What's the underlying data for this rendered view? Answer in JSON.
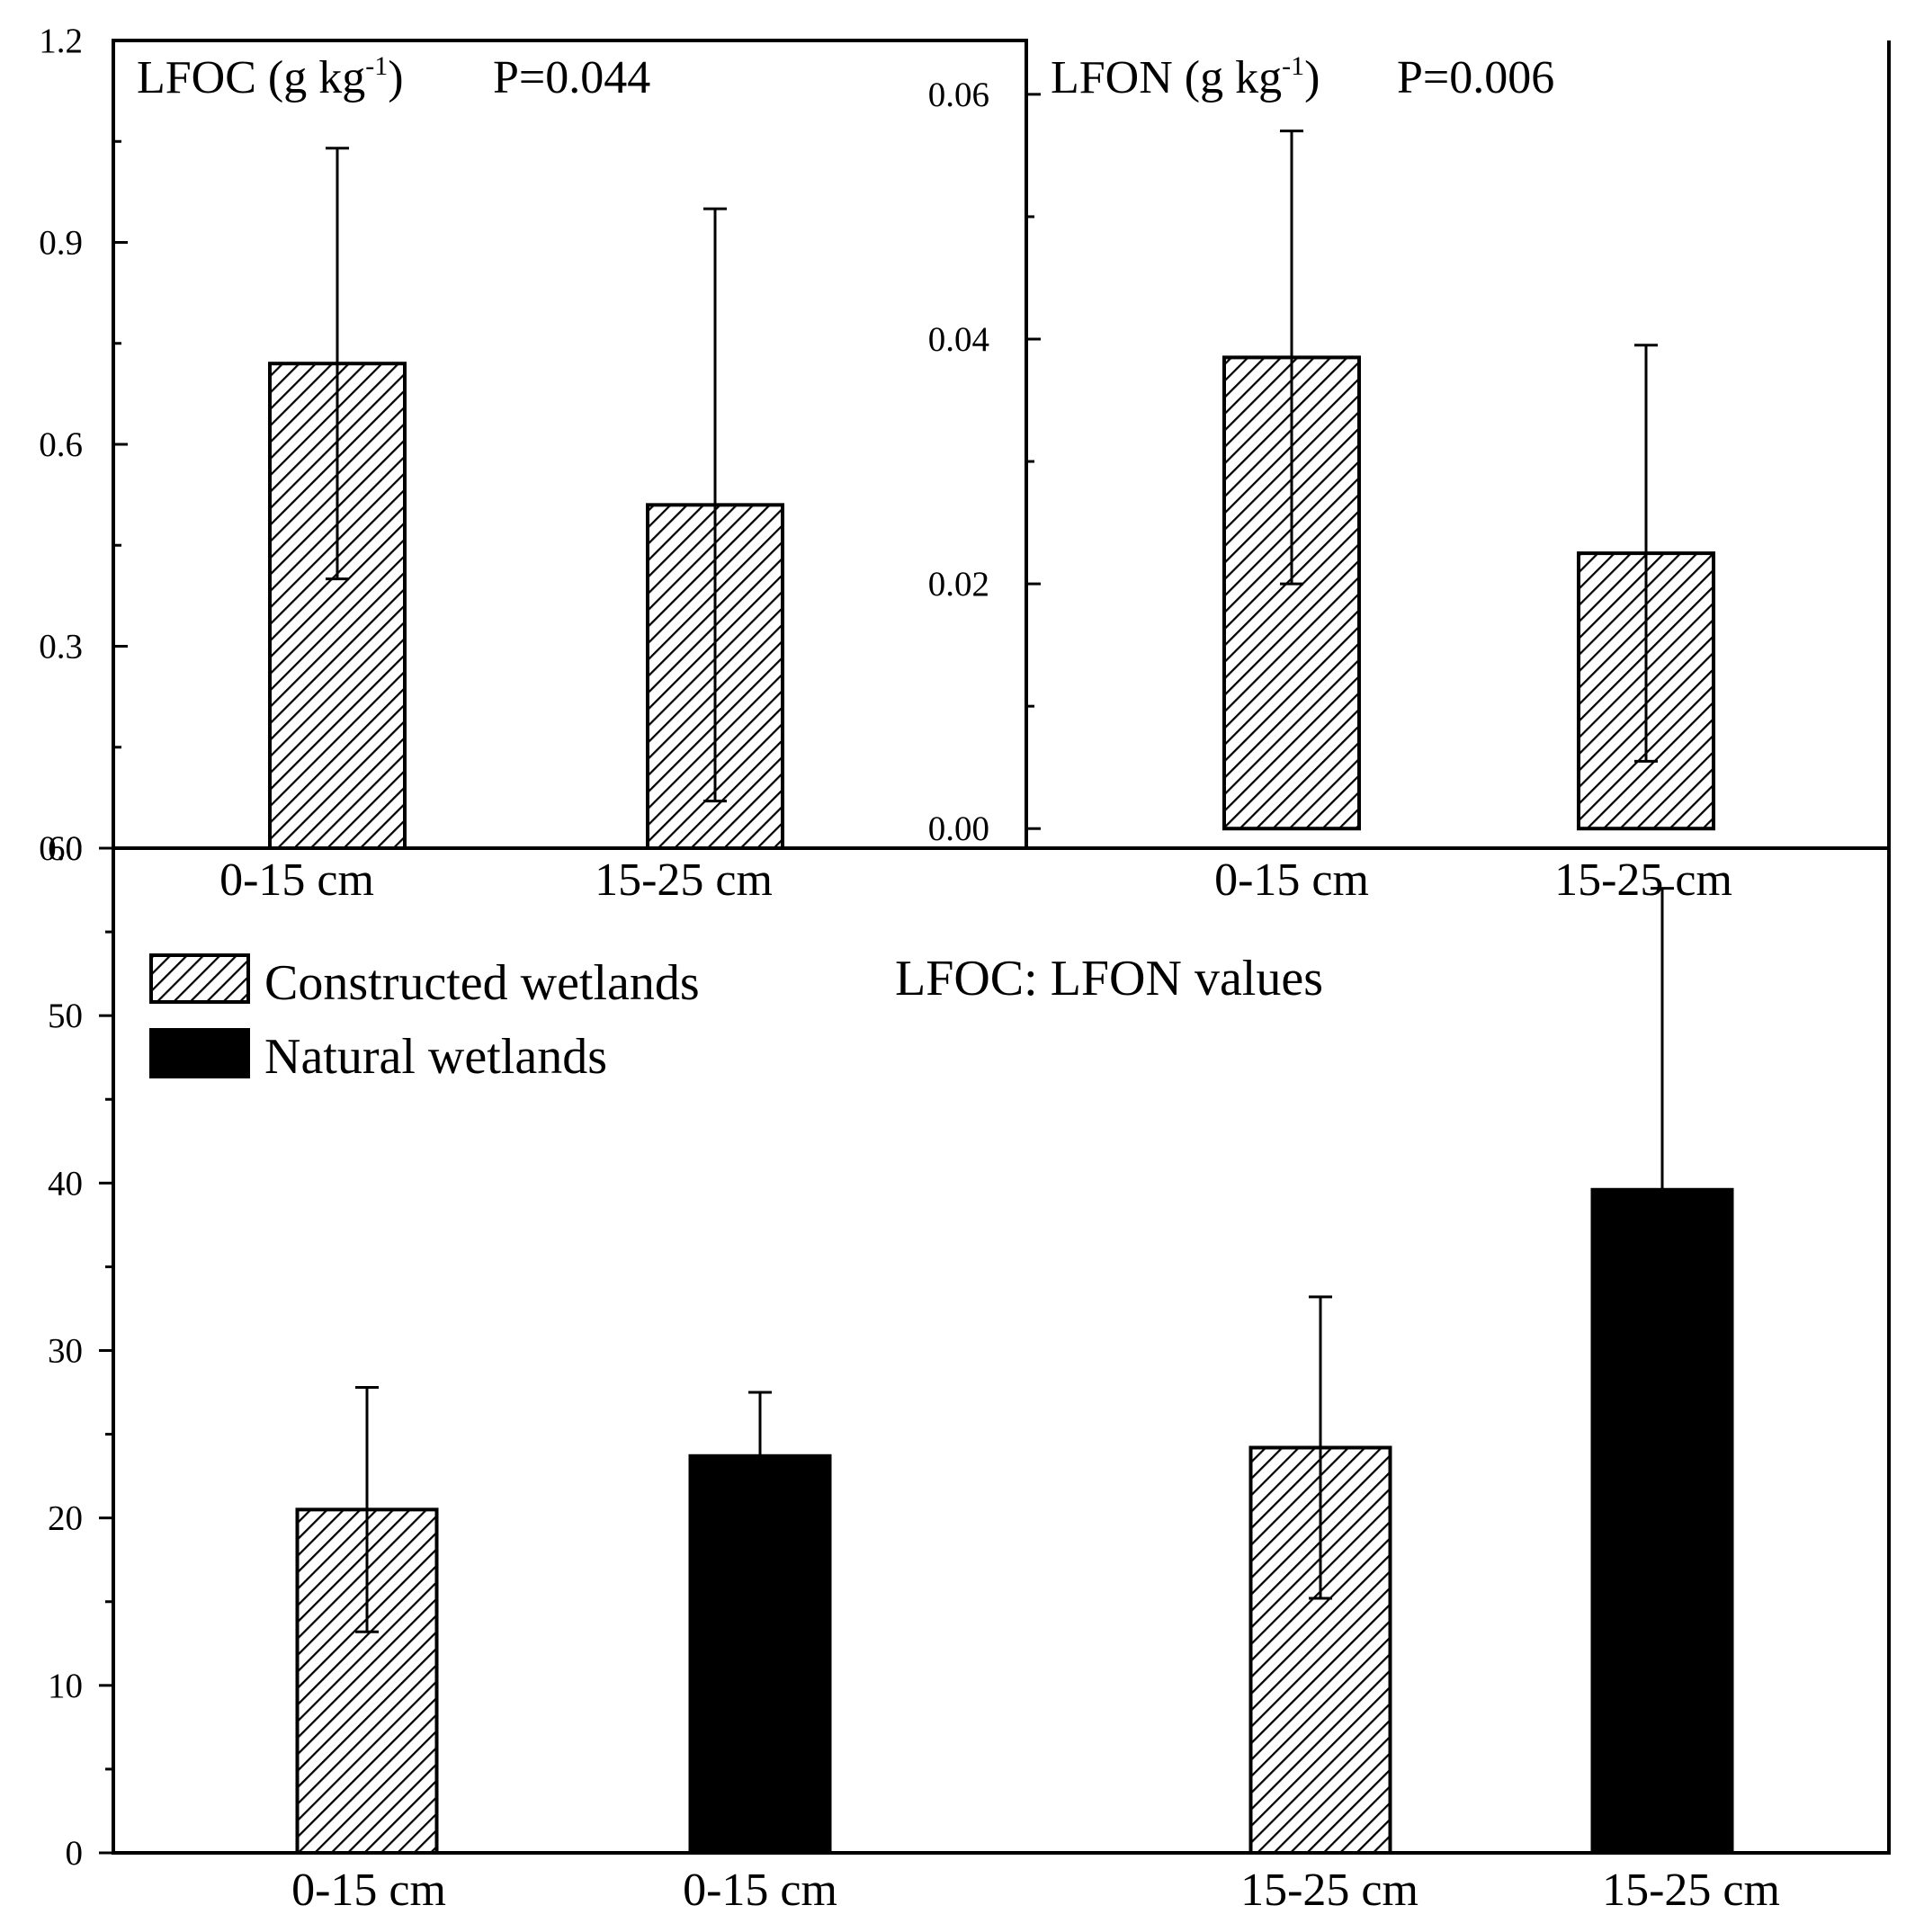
{
  "chart_data": [
    {
      "type": "bar",
      "title": "LFOC (g kg",
      "title_sup": "-1",
      "title_close": ")",
      "p_value": "P=0.044",
      "categories": [
        "0-15 cm",
        "15-25 cm"
      ],
      "values": [
        0.72,
        0.51
      ],
      "errors": [
        0.32,
        0.44
      ],
      "series_name": "Constructed wetlands",
      "ylim": [
        0,
        1.2
      ],
      "yticks": [
        0.0,
        0.3,
        0.6,
        0.9,
        1.2
      ],
      "ytick_labels": [
        "0.0",
        "0.3",
        "0.6",
        "0.9",
        "1.2"
      ]
    },
    {
      "type": "bar",
      "title": "LFON (g kg",
      "title_sup": "-1",
      "title_close": ")",
      "p_value": "P=0.006",
      "categories": [
        "0-15 cm",
        "15-25 cm"
      ],
      "values": [
        0.0385,
        0.0225
      ],
      "errors": [
        0.0185,
        0.017
      ],
      "series_name": "Constructed wetlands",
      "ylim": [
        -0.0016,
        0.0644
      ],
      "yticks": [
        0.0,
        0.02,
        0.04,
        0.06
      ],
      "ytick_labels": [
        "0.00",
        "0.02",
        "0.04",
        "0.06"
      ]
    },
    {
      "type": "bar",
      "title": "LFOC: LFON values",
      "categories": [
        "0-15 cm",
        "0-15 cm",
        "15-25 cm",
        "15-25 cm"
      ],
      "values": [
        20.5,
        23.7,
        24.2,
        39.6
      ],
      "errors": [
        7.3,
        3.8,
        9.0,
        18.0
      ],
      "bar_series": [
        "Constructed wetlands",
        "Natural wetlands",
        "Constructed wetlands",
        "Natural wetlands"
      ],
      "legend": [
        "Constructed wetlands",
        "Natural wetlands"
      ],
      "ylim": [
        0,
        60
      ],
      "yticks": [
        0,
        10,
        20,
        30,
        40,
        50,
        60
      ],
      "ytick_labels": [
        "0",
        "10",
        "20",
        "30",
        "40",
        "50",
        "60"
      ]
    }
  ]
}
